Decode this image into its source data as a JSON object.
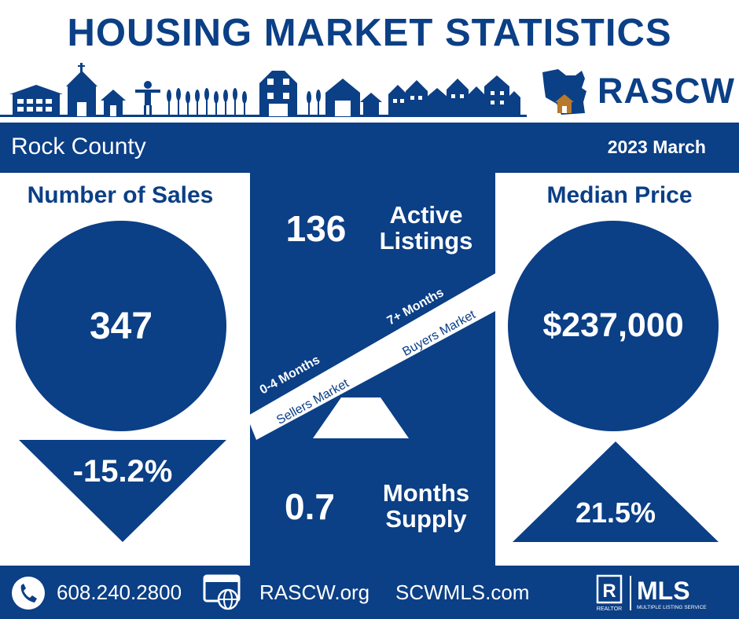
{
  "header": {
    "title": "HOUSING MARKET STATISTICS",
    "logo_text": "RASCW"
  },
  "band": {
    "county": "Rock County",
    "date": "2023 March"
  },
  "sales": {
    "heading": "Number of Sales",
    "value": "347",
    "change": "-15.2%"
  },
  "listings": {
    "value": "136",
    "label_line1": "Active",
    "label_line2": "Listings"
  },
  "scale": {
    "left_range": "0-4 Months",
    "left_label": "Sellers Market",
    "right_range": "7+ Months",
    "right_label": "Buyers Market"
  },
  "supply": {
    "value": "0.7",
    "label_line1": "Months",
    "label_line2": "Supply"
  },
  "price": {
    "heading": "Median Price",
    "value": "$237,000",
    "change": "21.5%"
  },
  "footer": {
    "phone": "608.240.2800",
    "site1": "RASCW.org",
    "site2": "SCWMLS.com",
    "realtor": "REALTOR",
    "mls": "MLS",
    "mls_sub": "MULTIPLE LISTING SERVICE"
  },
  "colors": {
    "brand_navy": "#0b3f86",
    "house_gold": "#b8792b"
  }
}
